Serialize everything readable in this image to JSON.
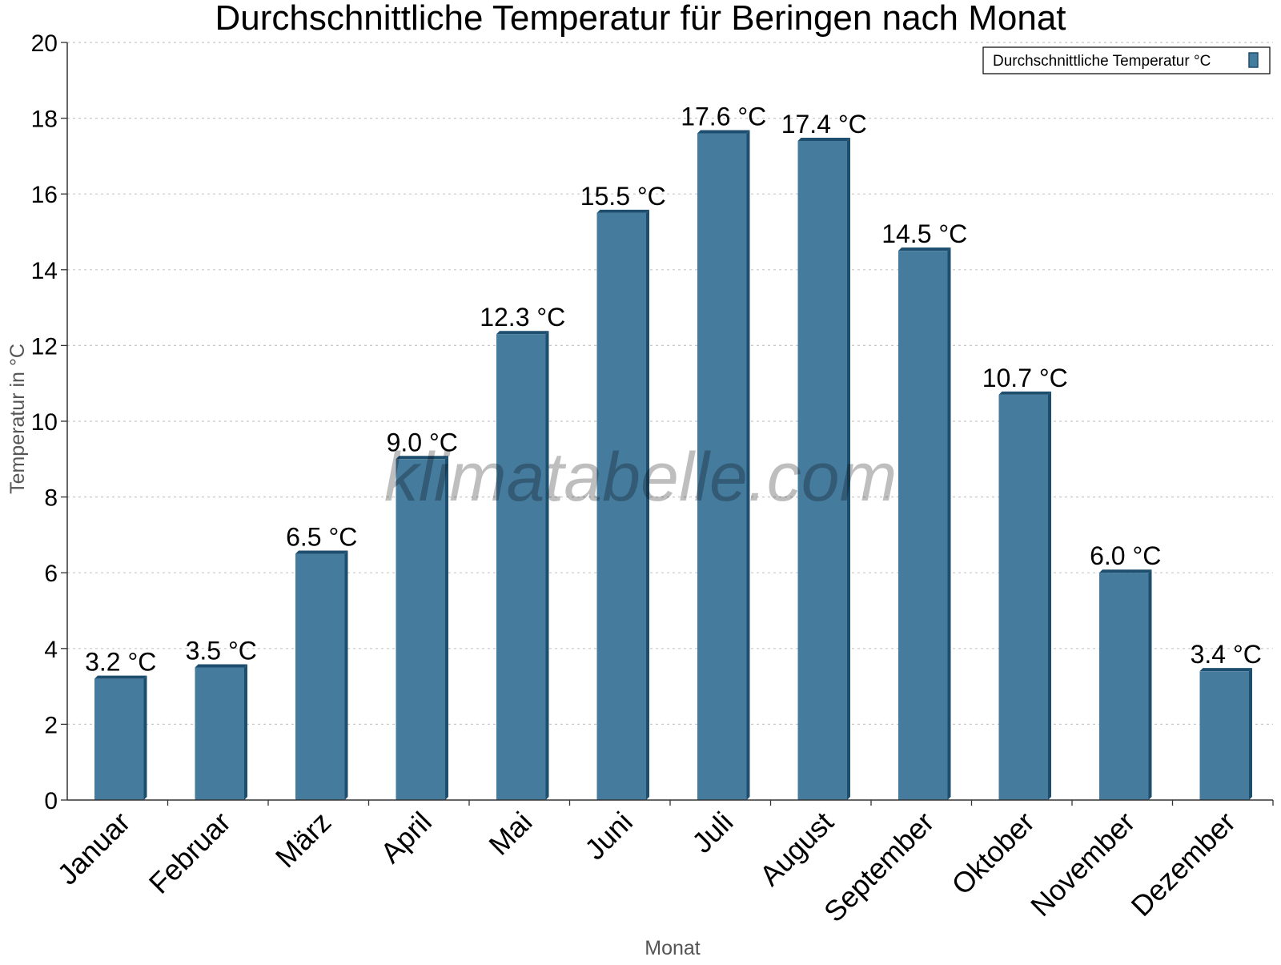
{
  "chart_data": {
    "type": "bar",
    "title": "Durchschnittliche Temperatur für Beringen nach Monat",
    "xlabel": "Monat",
    "ylabel": "Temperatur in °C",
    "ylim": [
      0,
      20
    ],
    "yticks": [
      "0",
      "2",
      "4",
      "6",
      "8",
      "10",
      "12",
      "14",
      "16",
      "18",
      "20"
    ],
    "grid": true,
    "legend_position": "top-right",
    "categories": [
      "Januar",
      "Februar",
      "März",
      "April",
      "Mai",
      "Juni",
      "Juli",
      "August",
      "September",
      "Oktober",
      "November",
      "Dezember"
    ],
    "series": [
      {
        "name": "Durchschnittliche Temperatur °C",
        "values": [
          3.2,
          3.5,
          6.5,
          9.0,
          12.3,
          15.5,
          17.6,
          17.4,
          14.5,
          10.7,
          6.0,
          3.4
        ],
        "labels": [
          "3.2 °C",
          "3.5 °C",
          "6.5 °C",
          "9.0 °C",
          "12.3 °C",
          "15.5 °C",
          "17.6 °C",
          "17.4 °C",
          "14.5 °C",
          "10.7 °C",
          "6.0 °C",
          "3.4 °C"
        ],
        "color": "#457b9d",
        "edge_color": "#1d4e6e"
      }
    ],
    "watermark": "klimatabelle.com"
  }
}
